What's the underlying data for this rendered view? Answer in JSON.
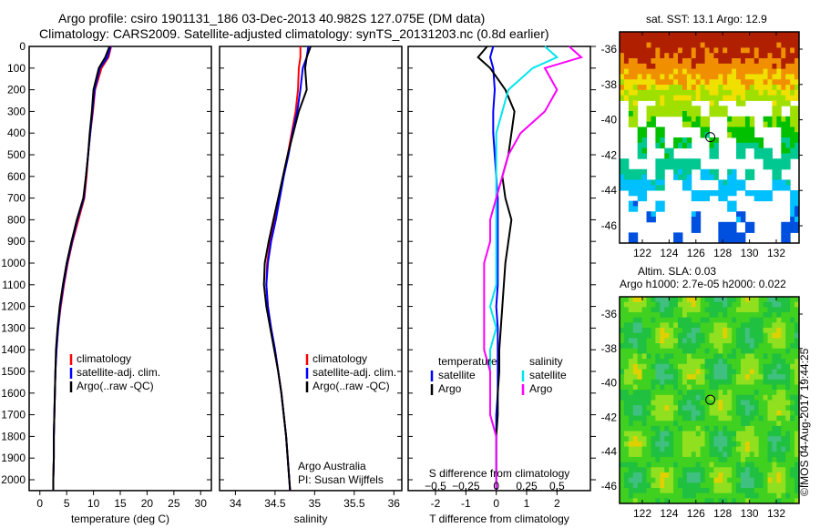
{
  "title_line1": "Argo profile: csiro 1901131_186 03-Dec-2013 40.982S 127.075E (DM data)",
  "title_line2": "Climatology: CARS2009. Satellite-adjusted climatology: synTS_20131203.nc (0.8d earlier)",
  "colors": {
    "climatology": "#ff0000",
    "satellite": "#0000ff",
    "argo": "#000000",
    "sal_satellite": "#00e5ee",
    "sal_argo": "#ff00ff"
  },
  "chart_data": [
    {
      "type": "line",
      "name": "temperature",
      "xlabel": "temperature (deg C)",
      "ylabel": "depth",
      "xlim": [
        -2,
        32
      ],
      "ylim": [
        2050,
        0
      ],
      "xticks": [
        0,
        5,
        10,
        15,
        20,
        25,
        30
      ],
      "yticks": [
        0,
        100,
        200,
        300,
        400,
        500,
        600,
        700,
        800,
        900,
        1000,
        1100,
        1200,
        1300,
        1400,
        1500,
        1600,
        1700,
        1800,
        1900,
        2000
      ],
      "depth": [
        0,
        50,
        100,
        200,
        300,
        400,
        500,
        600,
        700,
        800,
        900,
        1000,
        1100,
        1200,
        1300,
        1400,
        1500,
        1600,
        1700,
        1800,
        1900,
        2000,
        2050
      ],
      "series": [
        {
          "name": "climatology",
          "values": [
            13.3,
            12.8,
            11.5,
            10.3,
            9.9,
            9.4,
            9.0,
            8.7,
            8.3,
            7.2,
            6.1,
            5.2,
            4.5,
            3.9,
            3.4,
            3.1,
            2.9,
            2.8,
            2.7,
            2.6,
            2.6,
            2.5,
            2.5
          ]
        },
        {
          "name": "satellite-adj. clim.",
          "values": [
            13.2,
            12.6,
            11.2,
            10.2,
            9.8,
            9.4,
            9.0,
            8.6,
            8.2,
            7.0,
            6.0,
            5.1,
            4.4,
            3.8,
            3.4,
            3.1,
            2.9,
            2.8,
            2.7,
            2.6,
            2.6,
            2.5,
            2.5
          ]
        },
        {
          "name": "Argo(..raw -QC)",
          "values": [
            13.0,
            12.2,
            11.0,
            10.0,
            9.7,
            9.3,
            9.0,
            8.6,
            8.1,
            6.9,
            5.9,
            5.0,
            4.3,
            3.7,
            3.3,
            3.0,
            2.9,
            2.8,
            2.7,
            2.6,
            2.6,
            2.5,
            2.5
          ]
        }
      ],
      "legend": [
        "climatology",
        "satellite-adj. clim.",
        "Argo(..raw -QC)"
      ]
    },
    {
      "type": "line",
      "name": "salinity",
      "xlabel": "salinity",
      "xlim": [
        33.8,
        36.1
      ],
      "ylim": [
        2050,
        0
      ],
      "xticks": [
        34,
        34.5,
        35,
        35.5,
        36
      ],
      "depth": [
        0,
        50,
        100,
        200,
        300,
        400,
        500,
        600,
        700,
        800,
        900,
        1000,
        1100,
        1200,
        1300,
        1400,
        1500,
        1600,
        1700,
        1800,
        1900,
        2000,
        2050
      ],
      "series": [
        {
          "name": "climatology",
          "values": [
            34.82,
            34.82,
            34.8,
            34.79,
            34.76,
            34.71,
            34.66,
            34.6,
            34.55,
            34.5,
            34.44,
            34.4,
            34.39,
            34.41,
            34.45,
            34.5,
            34.54,
            34.58,
            34.61,
            34.64,
            34.66,
            34.68,
            34.69
          ]
        },
        {
          "name": "satellite-adj. clim.",
          "values": [
            34.92,
            34.9,
            34.85,
            34.82,
            34.78,
            34.72,
            34.67,
            34.61,
            34.56,
            34.51,
            34.45,
            34.41,
            34.39,
            34.41,
            34.45,
            34.5,
            34.54,
            34.58,
            34.61,
            34.64,
            34.66,
            34.68,
            34.69
          ]
        },
        {
          "name": "Argo(..raw -QC)",
          "values": [
            34.95,
            34.9,
            34.88,
            34.9,
            34.8,
            34.73,
            34.66,
            34.6,
            34.54,
            34.48,
            34.42,
            34.37,
            34.36,
            34.39,
            34.44,
            34.49,
            34.54,
            34.58,
            34.61,
            34.64,
            34.66,
            34.68,
            34.69
          ]
        }
      ],
      "legend": [
        "climatology",
        "satellite-adj. clim.",
        "Argo(..raw -QC)"
      ],
      "annotation": [
        "Argo Australia",
        "PI: Susan Wijffels"
      ]
    },
    {
      "type": "line",
      "name": "differences",
      "xlabel": "T difference from climatology",
      "x2label": "S difference from climatology",
      "xlim": [
        -2.9,
        3.1
      ],
      "ylim": [
        2050,
        0
      ],
      "xticks": [
        -2,
        -1,
        0,
        1,
        2
      ],
      "x2ticks": [
        "-0.5",
        "-0.25",
        "0",
        "0.25",
        "0.5"
      ],
      "depth": [
        0,
        50,
        100,
        200,
        300,
        400,
        500,
        600,
        700,
        800,
        900,
        1000,
        1100,
        1200,
        1300,
        1400,
        1500,
        1600,
        1700,
        1800,
        1900,
        2000,
        2050
      ],
      "series": [
        {
          "name": "temperature satellite",
          "values": [
            -0.1,
            -0.2,
            -0.1,
            -0.05,
            -0.1,
            -0.1,
            -0.05,
            0,
            0.05,
            0.05,
            0.05,
            0.05,
            0.05,
            0,
            0.05,
            0.05,
            0.05,
            0.05,
            0,
            0,
            0,
            0,
            0
          ]
        },
        {
          "name": "temperature Argo",
          "values": [
            -0.3,
            -0.6,
            -0.2,
            0.3,
            0.6,
            0.5,
            0.4,
            0.2,
            0.3,
            0.5,
            0.4,
            0.3,
            0.25,
            0.2,
            0.15,
            0.1,
            0.1,
            0.05,
            0.05,
            0,
            0,
            0,
            0
          ]
        },
        {
          "name": "salinity satellite",
          "values": [
            0.4,
            0.5,
            0.3,
            0.1,
            0.05,
            0,
            0,
            0,
            0,
            0,
            0,
            0,
            0,
            -0.05,
            0,
            -0.05,
            -0.05,
            -0.05,
            -0.05,
            0,
            0,
            0,
            0
          ]
        },
        {
          "name": "salinity Argo",
          "values": [
            0.6,
            0.7,
            0.4,
            0.5,
            0.4,
            0.2,
            0.1,
            0.05,
            0,
            -0.05,
            -0.05,
            -0.1,
            -0.1,
            -0.1,
            -0.1,
            -0.1,
            -0.05,
            -0.05,
            -0.05,
            0,
            0,
            0,
            0
          ]
        }
      ],
      "legend": {
        "temperature": "temperature",
        "salinity": "salinity",
        "satellite": "satellite",
        "argo": "Argo"
      }
    },
    {
      "type": "heatmap",
      "name": "sst-map",
      "title": "sat. SST: 13.1  Argo: 12.9",
      "xticks": [
        122,
        124,
        126,
        128,
        130,
        132
      ],
      "yticks": [
        -36,
        -38,
        -40,
        -42,
        -44,
        -46
      ],
      "marker": [
        127.075,
        -40.982
      ]
    },
    {
      "type": "heatmap",
      "name": "sla-map",
      "title1": "Altim. SLA: 0.03",
      "title2": "Argo h1000: 2.7e-05 h2000: 0.022",
      "xticks": [
        122,
        124,
        126,
        128,
        130,
        132
      ],
      "yticks": [
        -36,
        -38,
        -40,
        -42,
        -44,
        -46
      ],
      "marker": [
        127.075,
        -40.982
      ]
    }
  ],
  "timestamp": "©IMOS 04-Aug-2017 19:44:25"
}
